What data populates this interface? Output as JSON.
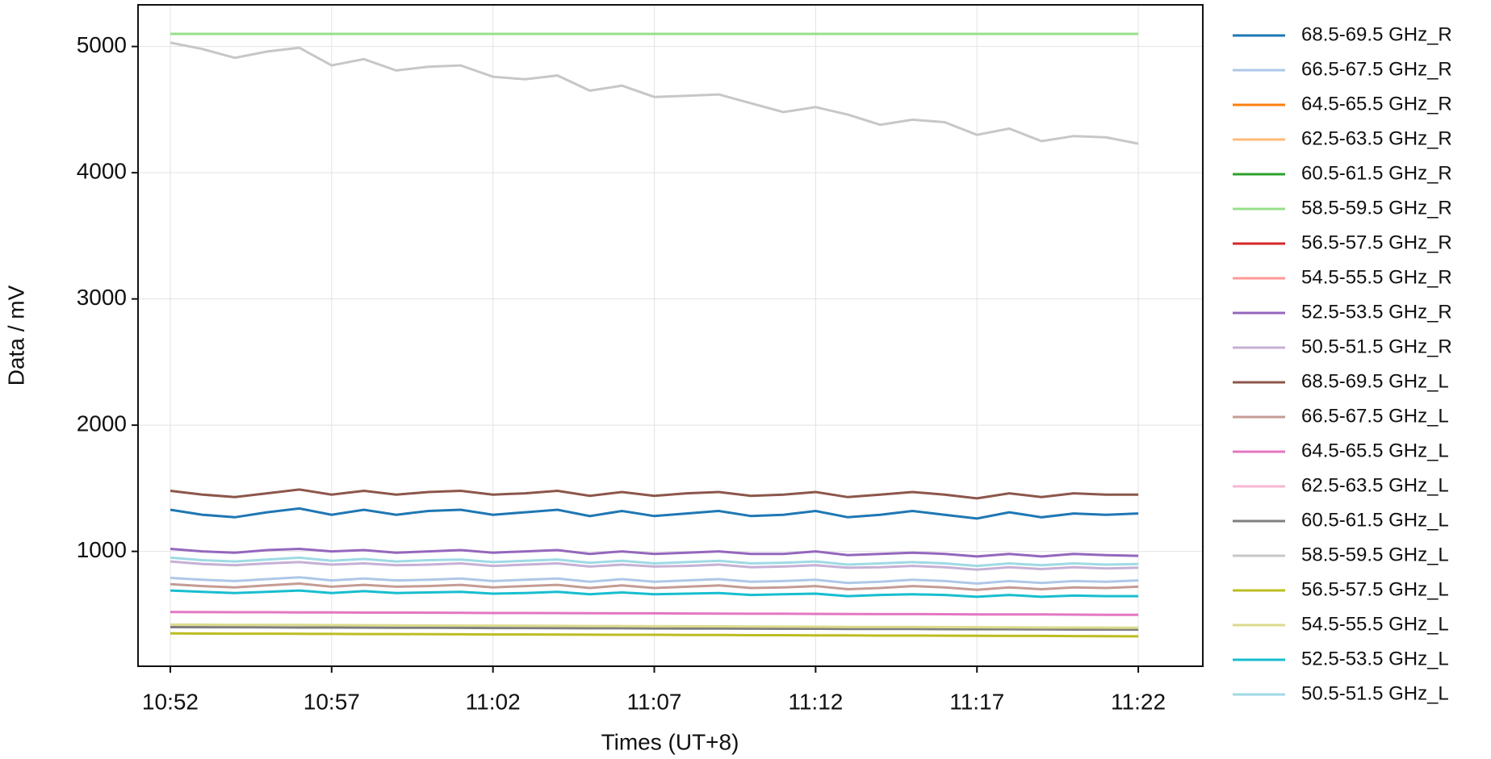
{
  "chart_data": {
    "type": "line",
    "xlabel": "Times (UT+8)",
    "ylabel": "Data / mV",
    "grid": true,
    "legend": "outside right",
    "x": [
      "10:52",
      "10:53",
      "10:54",
      "10:55",
      "10:56",
      "10:57",
      "10:58",
      "10:59",
      "11:00",
      "11:01",
      "11:02",
      "11:03",
      "11:04",
      "11:05",
      "11:06",
      "11:07",
      "11:08",
      "11:09",
      "11:10",
      "11:11",
      "11:12",
      "11:13",
      "11:14",
      "11:15",
      "11:16",
      "11:17",
      "11:18",
      "11:19",
      "11:20",
      "11:21",
      "11:22"
    ],
    "xlim": [
      "10:51",
      "11:24"
    ],
    "xticks": [
      "10:52",
      "10:57",
      "11:02",
      "11:07",
      "11:12",
      "11:17",
      "11:22"
    ],
    "ylim": [
      90,
      5330
    ],
    "yticks": [
      1000,
      2000,
      3000,
      4000,
      5000
    ],
    "series": [
      {
        "name": "68.5-69.5 GHz_R",
        "color": "#1f77b4",
        "values": [
          1330,
          1290,
          1270,
          1310,
          1340,
          1290,
          1330,
          1290,
          1320,
          1330,
          1290,
          1310,
          1330,
          1280,
          1320,
          1280,
          1300,
          1320,
          1280,
          1290,
          1320,
          1270,
          1290,
          1320,
          1290,
          1260,
          1310,
          1270,
          1300,
          1290,
          1300
        ]
      },
      {
        "name": "66.5-67.5 GHz_R",
        "color": "#aec7e8",
        "values": [
          790,
          775,
          765,
          780,
          795,
          770,
          785,
          770,
          775,
          785,
          765,
          775,
          785,
          760,
          780,
          760,
          770,
          780,
          760,
          765,
          775,
          750,
          760,
          775,
          765,
          745,
          765,
          750,
          765,
          760,
          770
        ]
      },
      {
        "name": "64.5-65.5 GHz_R",
        "color": "#ff7f0e",
        "values": [
          null,
          null,
          null,
          null,
          null,
          null,
          null,
          null,
          null,
          null,
          null,
          null,
          null,
          null,
          null,
          null,
          null,
          null,
          null,
          null,
          null,
          null,
          null,
          null,
          null,
          null,
          null,
          null,
          null,
          null,
          null
        ]
      },
      {
        "name": "62.5-63.5 GHz_R",
        "color": "#ffbb78",
        "values": [
          null,
          null,
          null,
          null,
          null,
          null,
          null,
          null,
          null,
          null,
          null,
          null,
          null,
          null,
          null,
          null,
          null,
          null,
          null,
          null,
          null,
          null,
          null,
          null,
          null,
          null,
          null,
          null,
          null,
          null,
          null
        ]
      },
      {
        "name": "60.5-61.5 GHz_R",
        "color": "#2ca02c",
        "values": [
          null,
          null,
          null,
          null,
          null,
          null,
          null,
          null,
          null,
          null,
          null,
          null,
          null,
          null,
          null,
          null,
          null,
          null,
          null,
          null,
          null,
          null,
          null,
          null,
          null,
          null,
          null,
          null,
          null,
          null,
          null
        ]
      },
      {
        "name": "58.5-59.5 GHz_R",
        "color": "#98df8a",
        "values": [
          5100,
          5100,
          5100,
          5100,
          5100,
          5100,
          5100,
          5100,
          5100,
          5100,
          5100,
          5100,
          5100,
          5100,
          5100,
          5100,
          5100,
          5100,
          5100,
          5100,
          5100,
          5100,
          5100,
          5100,
          5100,
          5100,
          5100,
          5100,
          5100,
          5100,
          5100
        ]
      },
      {
        "name": "56.5-57.5 GHz_R",
        "color": "#d62728",
        "values": [
          null,
          null,
          null,
          null,
          null,
          null,
          null,
          null,
          null,
          null,
          null,
          null,
          null,
          null,
          null,
          null,
          null,
          null,
          null,
          null,
          null,
          null,
          null,
          null,
          null,
          null,
          null,
          null,
          null,
          null,
          null
        ]
      },
      {
        "name": "54.5-55.5 GHz_R",
        "color": "#ff9896",
        "values": [
          null,
          null,
          null,
          null,
          null,
          null,
          null,
          null,
          null,
          null,
          null,
          null,
          null,
          null,
          null,
          null,
          null,
          null,
          null,
          null,
          null,
          null,
          null,
          null,
          null,
          null,
          null,
          null,
          null,
          null,
          null
        ]
      },
      {
        "name": "52.5-53.5 GHz_R",
        "color": "#9467bd",
        "values": [
          1020,
          1000,
          990,
          1010,
          1020,
          1000,
          1010,
          990,
          1000,
          1010,
          990,
          1000,
          1010,
          980,
          1000,
          980,
          990,
          1000,
          980,
          980,
          1000,
          970,
          980,
          990,
          980,
          960,
          980,
          960,
          980,
          970,
          965
        ]
      },
      {
        "name": "50.5-51.5 GHz_R",
        "color": "#c5b0d5",
        "values": [
          920,
          900,
          890,
          905,
          915,
          895,
          905,
          890,
          895,
          905,
          885,
          895,
          905,
          880,
          895,
          880,
          885,
          895,
          875,
          880,
          890,
          870,
          875,
          885,
          875,
          855,
          875,
          860,
          875,
          865,
          870
        ]
      },
      {
        "name": "68.5-69.5 GHz_L",
        "color": "#8c564b",
        "values": [
          1480,
          1450,
          1430,
          1460,
          1490,
          1450,
          1480,
          1450,
          1470,
          1480,
          1450,
          1460,
          1480,
          1440,
          1470,
          1440,
          1460,
          1470,
          1440,
          1450,
          1470,
          1430,
          1450,
          1470,
          1450,
          1420,
          1460,
          1430,
          1460,
          1450,
          1450
        ]
      },
      {
        "name": "66.5-67.5 GHz_L",
        "color": "#c49c94",
        "values": [
          740,
          725,
          715,
          730,
          745,
          720,
          735,
          720,
          725,
          735,
          715,
          725,
          735,
          710,
          730,
          710,
          720,
          730,
          710,
          715,
          725,
          700,
          710,
          725,
          715,
          695,
          715,
          700,
          715,
          710,
          720
        ]
      },
      {
        "name": "64.5-65.5 GHz_L",
        "color": "#e377c2",
        "values": [
          520,
          519,
          518,
          518,
          517,
          516,
          515,
          515,
          514,
          513,
          512,
          512,
          511,
          510,
          509,
          509,
          508,
          507,
          506,
          506,
          505,
          504,
          503,
          503,
          502,
          501,
          500,
          500,
          499,
          498,
          497
        ]
      },
      {
        "name": "62.5-63.5 GHz_L",
        "color": "#f7b6d2",
        "values": [
          null,
          null,
          null,
          null,
          null,
          null,
          null,
          null,
          null,
          null,
          null,
          null,
          null,
          null,
          null,
          null,
          null,
          null,
          null,
          null,
          null,
          null,
          null,
          null,
          null,
          null,
          null,
          null,
          null,
          null,
          null
        ]
      },
      {
        "name": "60.5-61.5 GHz_L",
        "color": "#7f7f7f",
        "values": [
          400,
          399,
          399,
          398,
          397,
          397,
          396,
          395,
          395,
          394,
          393,
          393,
          392,
          391,
          391,
          390,
          389,
          389,
          388,
          387,
          387,
          386,
          385,
          385,
          384,
          383,
          383,
          382,
          381,
          381,
          380
        ]
      },
      {
        "name": "58.5-59.5 GHz_L",
        "color": "#c7c7c7",
        "values": [
          5030,
          4980,
          4910,
          4960,
          4990,
          4850,
          4900,
          4810,
          4840,
          4850,
          4760,
          4740,
          4770,
          4650,
          4690,
          4600,
          4610,
          4620,
          4550,
          4480,
          4520,
          4460,
          4380,
          4420,
          4400,
          4300,
          4350,
          4250,
          4290,
          4280,
          4230
        ]
      },
      {
        "name": "56.5-57.5 GHz_L",
        "color": "#bcbd22",
        "values": [
          350,
          349,
          348,
          348,
          347,
          346,
          345,
          345,
          344,
          343,
          342,
          342,
          341,
          340,
          339,
          339,
          338,
          337,
          336,
          336,
          335,
          334,
          333,
          333,
          332,
          331,
          330,
          330,
          329,
          328,
          327
        ]
      },
      {
        "name": "54.5-55.5 GHz_L",
        "color": "#dbdb8d",
        "values": [
          420,
          419,
          418,
          417,
          417,
          416,
          415,
          414,
          413,
          412,
          412,
          411,
          410,
          409,
          408,
          407,
          407,
          406,
          405,
          404,
          403,
          402,
          402,
          401,
          400,
          399,
          398,
          397,
          397,
          396,
          395
        ]
      },
      {
        "name": "52.5-53.5 GHz_L",
        "color": "#17becf",
        "values": [
          690,
          680,
          670,
          680,
          690,
          670,
          685,
          670,
          675,
          680,
          665,
          670,
          680,
          660,
          675,
          660,
          665,
          670,
          655,
          660,
          665,
          645,
          655,
          660,
          655,
          640,
          655,
          640,
          650,
          645,
          645
        ]
      },
      {
        "name": "50.5-51.5 GHz_L",
        "color": "#9edae5",
        "values": [
          950,
          930,
          920,
          935,
          950,
          925,
          940,
          920,
          930,
          935,
          915,
          925,
          935,
          910,
          925,
          905,
          915,
          925,
          905,
          910,
          920,
          895,
          905,
          915,
          905,
          885,
          905,
          890,
          905,
          895,
          900
        ]
      }
    ]
  }
}
